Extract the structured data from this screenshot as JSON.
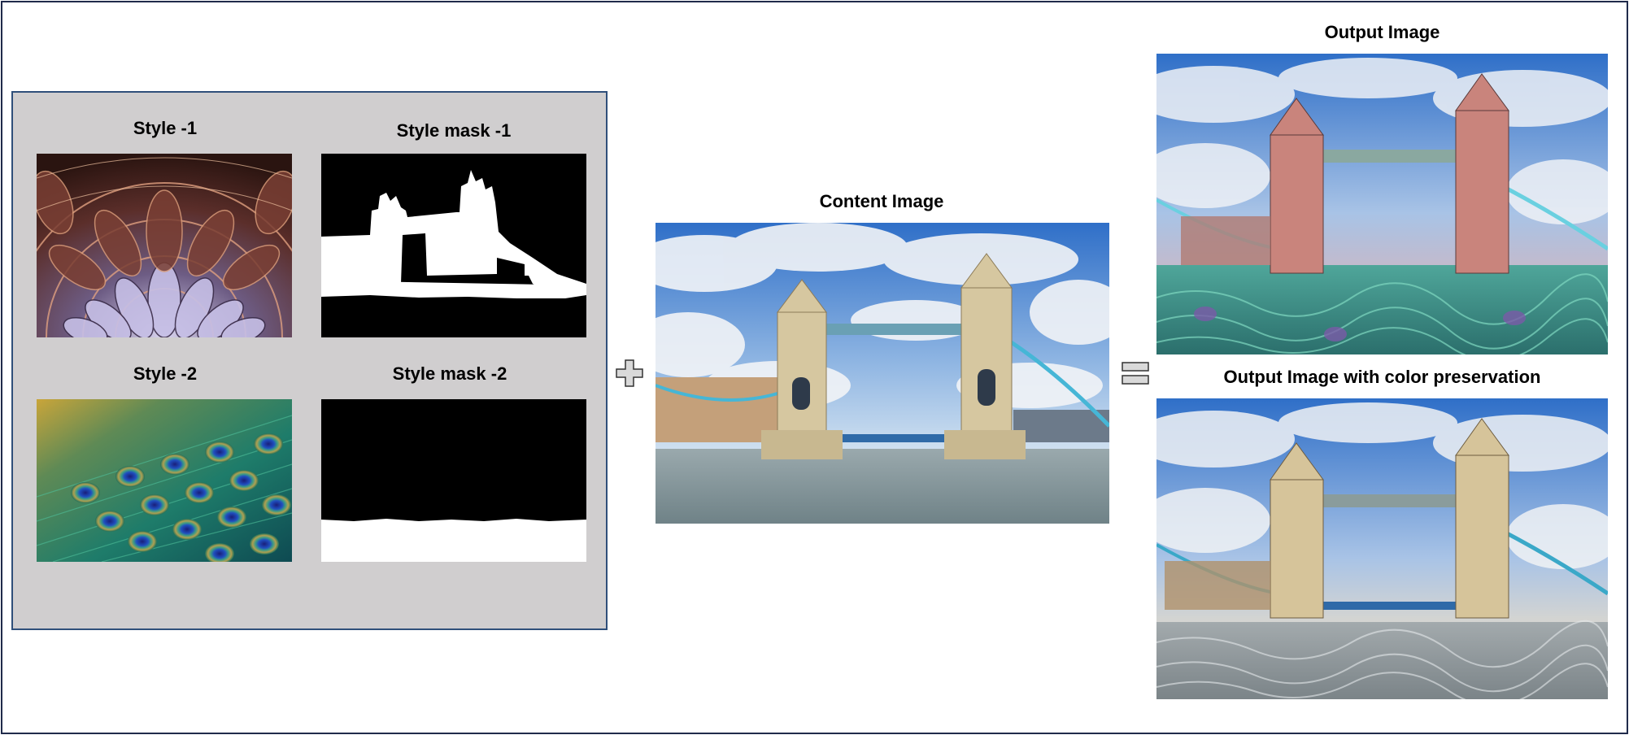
{
  "style_group": {
    "style1_label": "Style -1",
    "mask1_label": "Style mask -1",
    "style2_label": "Style -2",
    "mask2_label": "Style mask -2"
  },
  "content": {
    "label": "Content Image"
  },
  "outputs": {
    "output_label": "Output Image",
    "output_color_label": "Output Image with color preservation"
  },
  "operators": {
    "plus": "plus-icon",
    "equals": "equals-icon"
  },
  "colors": {
    "panel_bg": "#d0cecf",
    "panel_border": "#2f4f7a",
    "frame_border": "#1f2a4a",
    "sky": "#3d7fcf",
    "water": "#8fa0a6"
  }
}
